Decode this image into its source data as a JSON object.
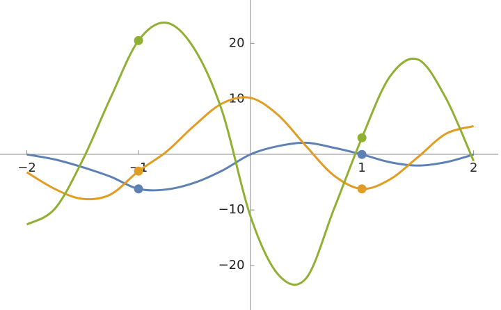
{
  "chart_data": {
    "type": "line",
    "x": [
      -2,
      -1.75,
      -1.5,
      -1.25,
      -1,
      -0.75,
      -0.5,
      -0.25,
      0,
      0.25,
      0.5,
      0.75,
      1,
      1.25,
      1.5,
      1.75,
      2
    ],
    "series": [
      {
        "color": "#5e81b5",
        "values": [
          0,
          -0.9,
          -2.3,
          -4,
          -6.2,
          -6.3,
          -5.1,
          -2.9,
          0,
          1.5,
          2.1,
          1.2,
          0,
          -1.4,
          -2,
          -1.4,
          0
        ],
        "marker_x": [
          -1,
          1
        ],
        "marker_values": [
          -6.2,
          0
        ]
      },
      {
        "color": "#e19c24",
        "values": [
          -3.2,
          -6.2,
          -8,
          -7.2,
          -3,
          0.5,
          5.2,
          9.2,
          10.2,
          7.1,
          1.5,
          -3.8,
          -6.2,
          -4.5,
          -0.5,
          3.7,
          5.1
        ],
        "marker_x": [
          -1,
          1
        ],
        "marker_values": [
          -3,
          -6.2
        ]
      },
      {
        "color": "#8fb032",
        "values": [
          -12.6,
          -9.8,
          -1,
          10.2,
          20.5,
          23.7,
          19,
          7.7,
          -11,
          -21.6,
          -22.3,
          -9.8,
          3,
          14,
          17.1,
          10.2,
          -1.2
        ],
        "marker_x": [
          -1,
          1
        ],
        "marker_values": [
          20.5,
          3
        ]
      }
    ],
    "xlim": [
      -2.24,
      2.22
    ],
    "ylim": [
      -28,
      27.8
    ],
    "xticks": [
      {
        "value": -2,
        "label": "−2"
      },
      {
        "value": -1,
        "label": "−1"
      },
      1,
      2
    ],
    "yticks": [
      {
        "value": -20,
        "label": "−20"
      },
      {
        "value": -10,
        "label": "−10"
      },
      10,
      20
    ]
  }
}
